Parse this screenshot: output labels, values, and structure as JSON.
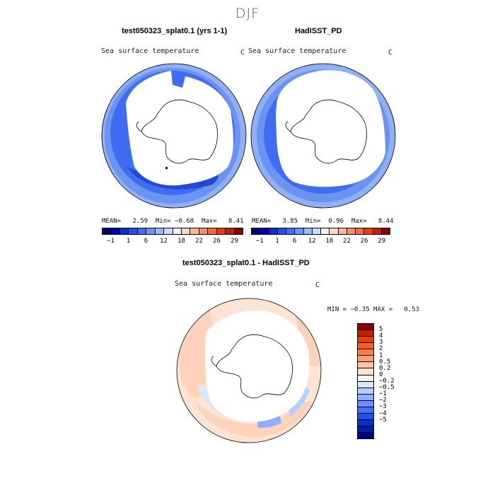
{
  "season": "DJF",
  "panels": {
    "left": {
      "title": "test050323_splat0.1 (yrs 1-1)",
      "subtitle": "Sea surface temperature",
      "unit": "C",
      "stats": {
        "mean_label": "MEAN=",
        "mean": "2.59",
        "min_label": "Min=",
        "min": "−0.68",
        "max_label": "Max=",
        "max": "8.41"
      }
    },
    "right": {
      "title": "HadISST_PD",
      "subtitle": "Sea surface temperature",
      "unit": "C",
      "stats": {
        "mean_label": "MEAN=",
        "mean": "3.85",
        "min_label": "Min=",
        "min": "0.96",
        "max_label": "Max=",
        "max": "8.44"
      }
    },
    "diff": {
      "title": "test050323_splat0.1 - HadISST_PD",
      "subtitle": "Sea surface temperature",
      "unit": "C",
      "min_label": "MIN =",
      "min": "−0.35",
      "max_label": "MAX =",
      "max": "0.53"
    }
  },
  "colorbar_top": {
    "colors": [
      "#000080",
      "#0000b4",
      "#0a2fd8",
      "#1e50ff",
      "#3c6eff",
      "#6496ff",
      "#96b9ff",
      "#c8dcff",
      "#f2f2f2",
      "#ffd6c0",
      "#ffb496",
      "#ff8c64",
      "#ff6432",
      "#ef3c0a",
      "#c81e00",
      "#8c0000"
    ],
    "labels": [
      "−1",
      "1",
      "6",
      "12",
      "18",
      "22",
      "26",
      "29"
    ]
  },
  "colorbar_diff": {
    "colors": [
      "#8c0000",
      "#c81e00",
      "#e83c0a",
      "#ff5a1e",
      "#ff7a46",
      "#ff9e78",
      "#ffc3a5",
      "#ffe1cf",
      "#f4f4f4",
      "#d8e8ff",
      "#b4cfff",
      "#8cb0ff",
      "#6a92ff",
      "#4070ff",
      "#1e50ee",
      "#0a2fd0",
      "#001eaa",
      "#000080"
    ],
    "labels": [
      "5",
      "4",
      "3",
      "2",
      "1",
      "0.5",
      "0.2",
      "0",
      "−0.2",
      "−0.5",
      "−1",
      "−2",
      "−3",
      "−4",
      "−5"
    ]
  }
}
